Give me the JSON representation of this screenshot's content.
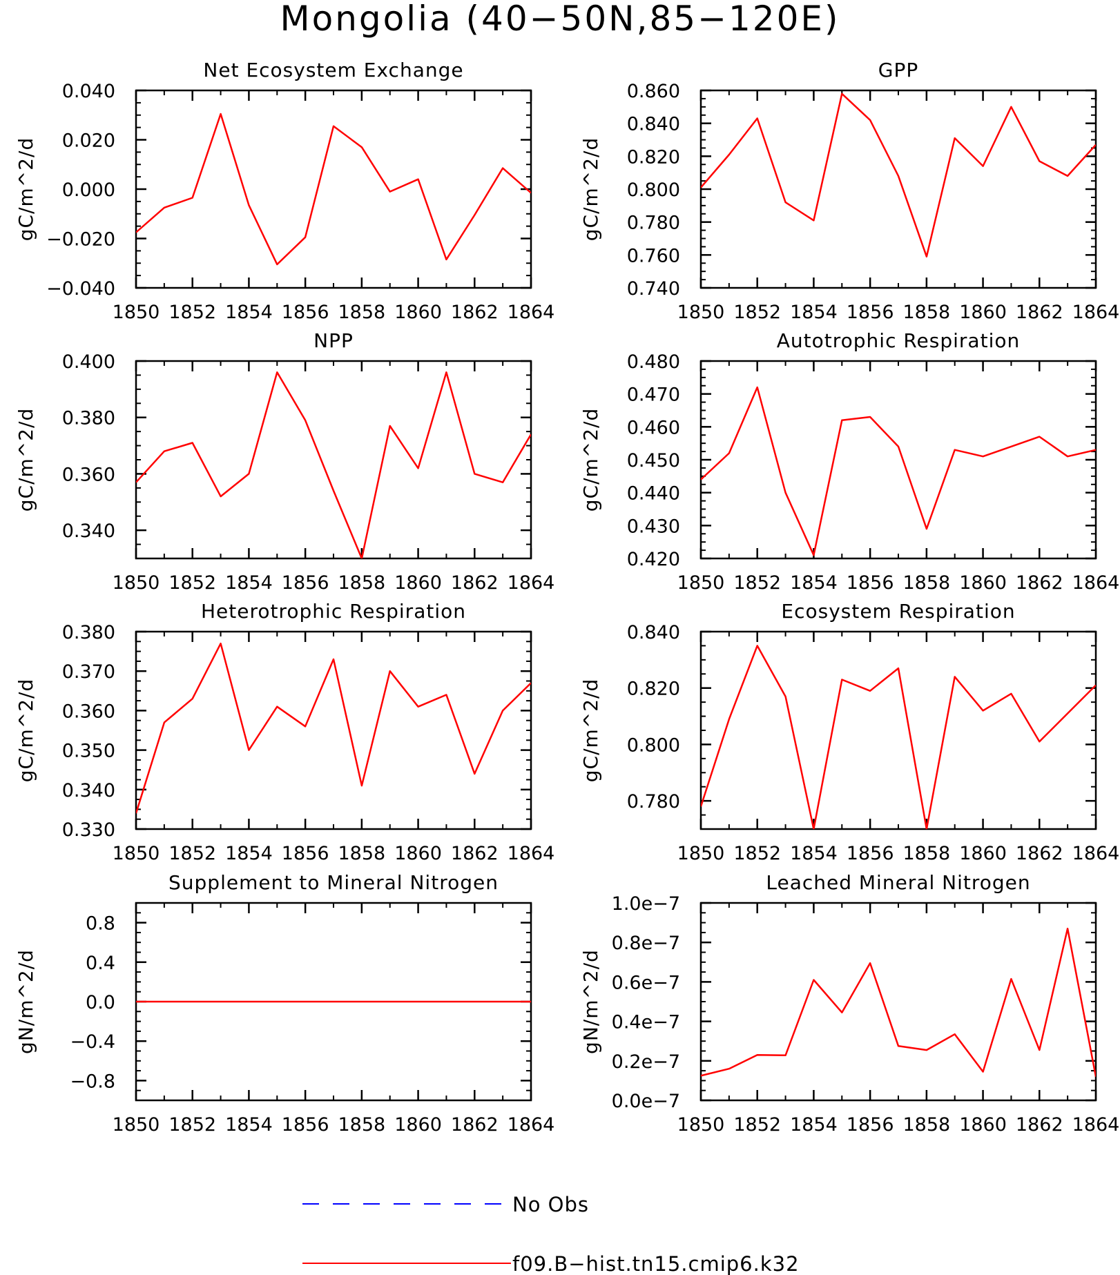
{
  "figure_title": "Mongolia (40−50N,85−120E)",
  "colors": {
    "model": "#ff0000",
    "obs": "#0000ff",
    "axis": "#000000"
  },
  "legend": [
    {
      "label": "No Obs",
      "style": "dashed",
      "color": "#0000ff"
    },
    {
      "label": "f09.B−hist.tn15.cmip6.k32",
      "style": "solid",
      "color": "#ff0000"
    }
  ],
  "chart_data": [
    {
      "type": "line",
      "title": "Net Ecosystem Exchange",
      "ylabel": "gC/m^2/d",
      "x": [
        1850,
        1851,
        1852,
        1853,
        1854,
        1855,
        1856,
        1857,
        1858,
        1859,
        1860,
        1861,
        1862,
        1863,
        1864
      ],
      "values": [
        -0.0175,
        -0.0075,
        -0.0035,
        0.0305,
        -0.0065,
        -0.0305,
        -0.0195,
        0.0255,
        0.017,
        -0.001,
        0.004,
        -0.0285,
        -0.0105,
        0.0085,
        -0.0015
      ],
      "xlim": [
        1850,
        1864
      ],
      "ylim": [
        -0.04,
        0.04
      ],
      "xticks": [
        1850,
        1852,
        1854,
        1856,
        1858,
        1860,
        1862,
        1864
      ],
      "xtick_labels": [
        "1850",
        "1852",
        "1854",
        "1856",
        "1858",
        "1860",
        "1862",
        "1864"
      ],
      "yticks": [
        -0.04,
        -0.02,
        0,
        0.02,
        0.04
      ],
      "ytick_labels": [
        "−0.040",
        "−0.020",
        "0.000",
        "0.020",
        "0.040"
      ],
      "yminor": 0.005
    },
    {
      "type": "line",
      "title": "GPP",
      "ylabel": "gC/m^2/d",
      "x": [
        1850,
        1851,
        1852,
        1853,
        1854,
        1855,
        1856,
        1857,
        1858,
        1859,
        1860,
        1861,
        1862,
        1863,
        1864
      ],
      "values": [
        0.801,
        0.821,
        0.843,
        0.792,
        0.781,
        0.858,
        0.842,
        0.808,
        0.759,
        0.831,
        0.814,
        0.85,
        0.817,
        0.808,
        0.827
      ],
      "xlim": [
        1850,
        1864
      ],
      "ylim": [
        0.74,
        0.86
      ],
      "xticks": [
        1850,
        1852,
        1854,
        1856,
        1858,
        1860,
        1862,
        1864
      ],
      "xtick_labels": [
        "1850",
        "1852",
        "1854",
        "1856",
        "1858",
        "1860",
        "1862",
        "1864"
      ],
      "yticks": [
        0.74,
        0.76,
        0.78,
        0.8,
        0.82,
        0.84,
        0.86
      ],
      "ytick_labels": [
        "0.740",
        "0.760",
        "0.780",
        "0.800",
        "0.820",
        "0.840",
        "0.860"
      ],
      "yminor": 0.005
    },
    {
      "type": "line",
      "title": "NPP",
      "ylabel": "gC/m^2/d",
      "x": [
        1850,
        1851,
        1852,
        1853,
        1854,
        1855,
        1856,
        1857,
        1858,
        1859,
        1860,
        1861,
        1862,
        1863,
        1864
      ],
      "values": [
        0.357,
        0.368,
        0.371,
        0.352,
        0.36,
        0.396,
        0.379,
        0.354,
        0.33,
        0.377,
        0.362,
        0.396,
        0.36,
        0.357,
        0.374
      ],
      "xlim": [
        1850,
        1864
      ],
      "ylim": [
        0.33,
        0.4
      ],
      "xticks": [
        1850,
        1852,
        1854,
        1856,
        1858,
        1860,
        1862,
        1864
      ],
      "xtick_labels": [
        "1850",
        "1852",
        "1854",
        "1856",
        "1858",
        "1860",
        "1862",
        "1864"
      ],
      "yticks": [
        0.34,
        0.36,
        0.38,
        0.4
      ],
      "ytick_labels": [
        "0.340",
        "0.360",
        "0.380",
        "0.400"
      ],
      "yminor": 0.005
    },
    {
      "type": "line",
      "title": "Autotrophic Respiration",
      "ylabel": "gC/m^2/d",
      "x": [
        1850,
        1851,
        1852,
        1853,
        1854,
        1855,
        1856,
        1857,
        1858,
        1859,
        1860,
        1861,
        1862,
        1863,
        1864
      ],
      "values": [
        0.444,
        0.452,
        0.472,
        0.44,
        0.421,
        0.462,
        0.463,
        0.454,
        0.429,
        0.453,
        0.451,
        0.454,
        0.457,
        0.451,
        0.453
      ],
      "xlim": [
        1850,
        1864
      ],
      "ylim": [
        0.42,
        0.48
      ],
      "xticks": [
        1850,
        1852,
        1854,
        1856,
        1858,
        1860,
        1862,
        1864
      ],
      "xtick_labels": [
        "1850",
        "1852",
        "1854",
        "1856",
        "1858",
        "1860",
        "1862",
        "1864"
      ],
      "yticks": [
        0.42,
        0.43,
        0.44,
        0.45,
        0.46,
        0.47,
        0.48
      ],
      "ytick_labels": [
        "0.420",
        "0.430",
        "0.440",
        "0.450",
        "0.460",
        "0.470",
        "0.480"
      ],
      "yminor": 0.0025
    },
    {
      "type": "line",
      "title": "Heterotrophic Respiration",
      "ylabel": "gC/m^2/d",
      "x": [
        1850,
        1851,
        1852,
        1853,
        1854,
        1855,
        1856,
        1857,
        1858,
        1859,
        1860,
        1861,
        1862,
        1863,
        1864
      ],
      "values": [
        0.334,
        0.357,
        0.363,
        0.377,
        0.35,
        0.361,
        0.356,
        0.373,
        0.341,
        0.37,
        0.361,
        0.364,
        0.344,
        0.36,
        0.367
      ],
      "xlim": [
        1850,
        1864
      ],
      "ylim": [
        0.33,
        0.38
      ],
      "xticks": [
        1850,
        1852,
        1854,
        1856,
        1858,
        1860,
        1862,
        1864
      ],
      "xtick_labels": [
        "1850",
        "1852",
        "1854",
        "1856",
        "1858",
        "1860",
        "1862",
        "1864"
      ],
      "yticks": [
        0.33,
        0.34,
        0.35,
        0.36,
        0.37,
        0.38
      ],
      "ytick_labels": [
        "0.330",
        "0.340",
        "0.350",
        "0.360",
        "0.370",
        "0.380"
      ],
      "yminor": 0.0025
    },
    {
      "type": "line",
      "title": "Ecosystem Respiration",
      "ylabel": "gC/m^2/d",
      "x": [
        1850,
        1851,
        1852,
        1853,
        1854,
        1855,
        1856,
        1857,
        1858,
        1859,
        1860,
        1861,
        1862,
        1863,
        1864
      ],
      "values": [
        0.778,
        0.809,
        0.835,
        0.817,
        0.77,
        0.823,
        0.819,
        0.827,
        0.77,
        0.824,
        0.812,
        0.818,
        0.801,
        0.811,
        0.821
      ],
      "xlim": [
        1850,
        1864
      ],
      "ylim": [
        0.77,
        0.84
      ],
      "xticks": [
        1850,
        1852,
        1854,
        1856,
        1858,
        1860,
        1862,
        1864
      ],
      "xtick_labels": [
        "1850",
        "1852",
        "1854",
        "1856",
        "1858",
        "1860",
        "1862",
        "1864"
      ],
      "yticks": [
        0.78,
        0.8,
        0.82,
        0.84
      ],
      "ytick_labels": [
        "0.780",
        "0.800",
        "0.820",
        "0.840"
      ],
      "yminor": 0.005
    },
    {
      "type": "line",
      "title": "Supplement to Mineral Nitrogen",
      "ylabel": "gN/m^2/d",
      "x": [
        1850,
        1851,
        1852,
        1853,
        1854,
        1855,
        1856,
        1857,
        1858,
        1859,
        1860,
        1861,
        1862,
        1863,
        1864
      ],
      "values": [
        0,
        0,
        0,
        0,
        0,
        0,
        0,
        0,
        0,
        0,
        0,
        0,
        0,
        0,
        0
      ],
      "xlim": [
        1850,
        1864
      ],
      "ylim": [
        -1.0,
        1.0
      ],
      "xticks": [
        1850,
        1852,
        1854,
        1856,
        1858,
        1860,
        1862,
        1864
      ],
      "xtick_labels": [
        "1850",
        "1852",
        "1854",
        "1856",
        "1858",
        "1860",
        "1862",
        "1864"
      ],
      "yticks": [
        -0.8,
        -0.4,
        0,
        0.4,
        0.8
      ],
      "ytick_labels": [
        "−0.8",
        "−0.4",
        "0.0",
        "0.4",
        "0.8"
      ],
      "yminor": 0.1
    },
    {
      "type": "line",
      "title": "Leached Mineral Nitrogen",
      "ylabel": "gN/m^2/d",
      "x": [
        1850,
        1851,
        1852,
        1853,
        1854,
        1855,
        1856,
        1857,
        1858,
        1859,
        1860,
        1861,
        1862,
        1863,
        1864
      ],
      "values": [
        1.25e-08,
        1.6e-08,
        2.3e-08,
        2.28e-08,
        6.1e-08,
        4.45e-08,
        6.95e-08,
        2.75e-08,
        2.55e-08,
        3.35e-08,
        1.45e-08,
        6.15e-08,
        2.55e-08,
        8.7e-08,
        1.2e-08
      ],
      "xlim": [
        1850,
        1864
      ],
      "ylim": [
        0,
        1e-07
      ],
      "xticks": [
        1850,
        1852,
        1854,
        1856,
        1858,
        1860,
        1862,
        1864
      ],
      "xtick_labels": [
        "1850",
        "1852",
        "1854",
        "1856",
        "1858",
        "1860",
        "1862",
        "1864"
      ],
      "yticks": [
        0,
        2e-08,
        4e-08,
        6e-08,
        8e-08,
        1e-07
      ],
      "ytick_labels": [
        "0.0e−7",
        "0.2e−7",
        "0.4e−7",
        "0.6e−7",
        "0.8e−7",
        "1.0e−7"
      ],
      "yminor": 5e-09
    }
  ]
}
